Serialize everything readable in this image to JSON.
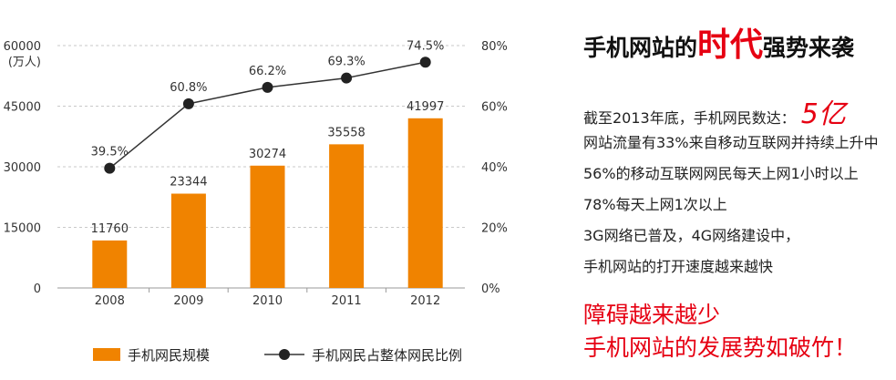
{
  "chart_data": {
    "type": "bar",
    "categories": [
      "2008",
      "2009",
      "2010",
      "2011",
      "2012"
    ],
    "series": [
      {
        "name": "手机网民规模",
        "type": "bar",
        "values": [
          11760,
          23344,
          30274,
          35558,
          41997
        ],
        "labels": [
          "11760",
          "23344",
          "30274",
          "35558",
          "41997"
        ],
        "color": "#f08300"
      },
      {
        "name": "手机网民占整体网民比例",
        "type": "line",
        "values": [
          39.5,
          60.8,
          66.2,
          69.3,
          74.5
        ],
        "labels": [
          "39.5%",
          "60.8%",
          "66.2%",
          "69.3%",
          "74.5%"
        ],
        "color": "#333333",
        "marker_color": "#222222"
      }
    ],
    "y_left": {
      "label": "(万人)",
      "range": [
        0,
        60000
      ],
      "ticks": [
        0,
        15000,
        30000,
        45000,
        60000
      ],
      "tick_labels": [
        "0",
        "15000",
        "30000",
        "45000",
        "60000"
      ]
    },
    "y_right": {
      "range": [
        0,
        80
      ],
      "ticks": [
        0,
        20,
        40,
        60,
        80
      ],
      "tick_labels": [
        "0%",
        "20%",
        "40%",
        "60%",
        "80%"
      ]
    },
    "grid": true,
    "legend": "bottom"
  },
  "headline": {
    "part1": "手机网站的",
    "highlight": "时代",
    "part2": "强势来袭"
  },
  "facts": {
    "lead": "截至2013年底，手机网民数达：",
    "lead_value": "5亿",
    "lines": [
      "网站流量有33%来自移动互联网并持续上升中",
      "56%的移动互联网网民每天上网1小时以上",
      "78%每天上网1次以上",
      "3G网络已普及，4G网络建设中，",
      "手机网站的打开速度越来越快"
    ]
  },
  "conclusion": [
    "障碍越来越少",
    "手机网站的发展势如破竹！"
  ],
  "colors": {
    "accent": "#e60012",
    "text": "#222222"
  }
}
